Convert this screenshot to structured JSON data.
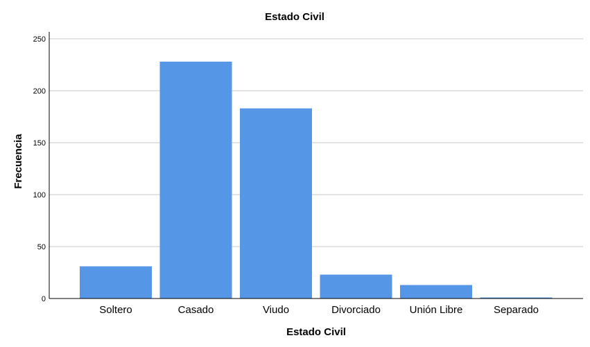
{
  "chart_data": {
    "type": "bar",
    "title": "Estado Civil",
    "xlabel": "Estado Civil",
    "ylabel": "Frecuencia",
    "categories": [
      "Soltero",
      "Casado",
      "Viudo",
      "Divorciado",
      "Unión Libre",
      "Separado"
    ],
    "values": [
      31,
      228,
      183,
      23,
      13,
      1
    ],
    "ylim": [
      0,
      250
    ],
    "yticks": [
      "0",
      "50",
      "100",
      "150",
      "200",
      "250"
    ],
    "grid": true,
    "bar_color": "#5596e6",
    "grid_color": "#c7c7c7"
  }
}
